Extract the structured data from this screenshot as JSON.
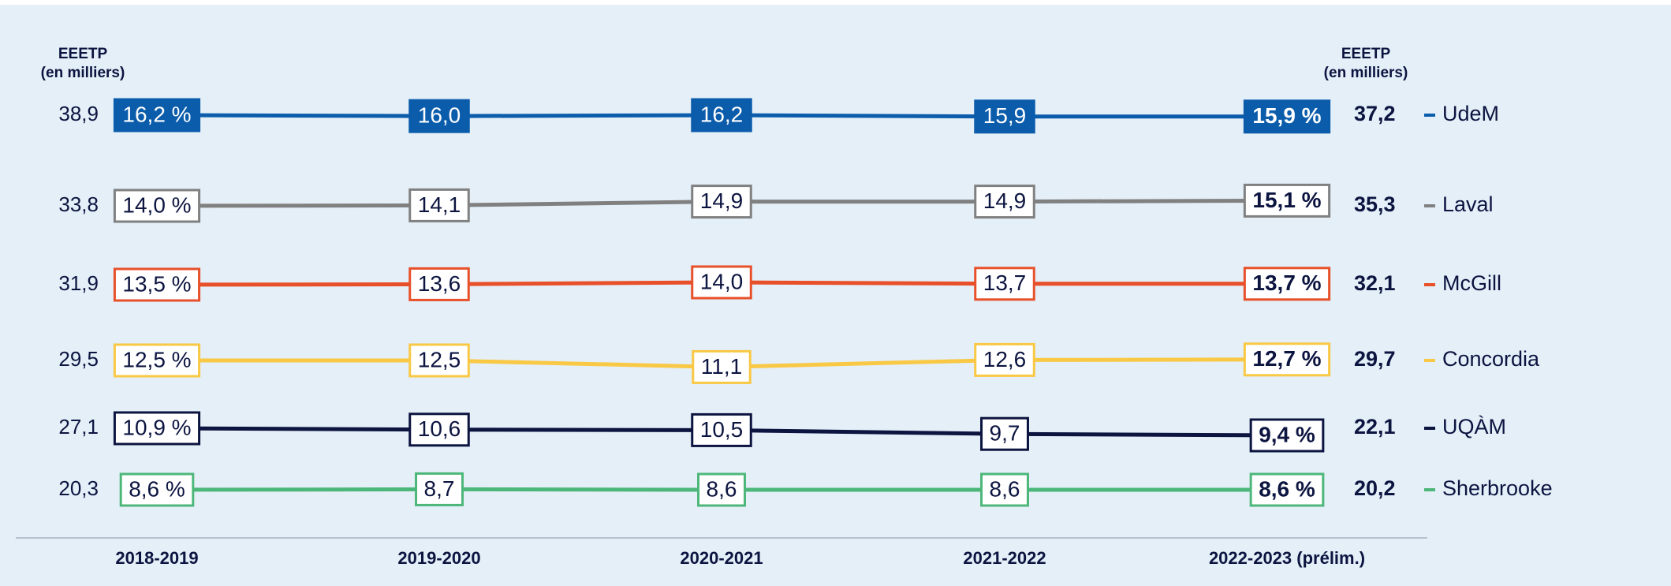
{
  "chart_data": {
    "type": "line",
    "eeetp_title": "EEETP",
    "eeetp_unit": "(en milliers)",
    "categories": [
      "2018-2019",
      "2019-2020",
      "2020-2021",
      "2021-2022",
      "2022-2023 (prélim.)"
    ],
    "series": [
      {
        "name": "UdeM",
        "color": "#0b5cab",
        "label_style": "filled",
        "values": [
          16.2,
          16.0,
          16.2,
          15.9,
          15.9
        ],
        "value_labels": [
          "16,2 %",
          "16,0",
          "16,2",
          "15,9",
          "15,9 %"
        ],
        "eeetp": [
          38.9,
          37.2
        ],
        "eeetp_labels": [
          "38,9",
          "37,2"
        ]
      },
      {
        "name": "Laval",
        "color": "#808080",
        "label_style": "outlined",
        "values": [
          14.0,
          14.1,
          14.9,
          14.9,
          15.1
        ],
        "value_labels": [
          "14,0 %",
          "14,1",
          "14,9",
          "14,9",
          "15,1 %"
        ],
        "eeetp": [
          33.8,
          35.3
        ],
        "eeetp_labels": [
          "33,8",
          "35,3"
        ]
      },
      {
        "name": "McGill",
        "color": "#e8502a",
        "label_style": "outlined",
        "values": [
          13.5,
          13.6,
          14.0,
          13.7,
          13.7
        ],
        "value_labels": [
          "13,5 %",
          "13,6",
          "14,0",
          "13,7",
          "13,7 %"
        ],
        "eeetp": [
          31.9,
          32.1
        ],
        "eeetp_labels": [
          "31,9",
          "32,1"
        ]
      },
      {
        "name": "Concordia",
        "color": "#f9c844",
        "label_style": "outlined",
        "values": [
          12.5,
          12.5,
          11.1,
          12.6,
          12.7
        ],
        "value_labels": [
          "12,5 %",
          "12,5",
          "11,1",
          "12,6",
          "12,7 %"
        ],
        "eeetp": [
          29.5,
          29.7
        ],
        "eeetp_labels": [
          "29,5",
          "29,7"
        ]
      },
      {
        "name": "UQÀM",
        "color": "#0c1440",
        "label_style": "outlined",
        "values": [
          10.9,
          10.6,
          10.5,
          9.7,
          9.4
        ],
        "value_labels": [
          "10,9 %",
          "10,6",
          "10,5",
          "9,7",
          "9,4 %"
        ],
        "eeetp": [
          27.1,
          22.1
        ],
        "eeetp_labels": [
          "27,1",
          "22,1"
        ]
      },
      {
        "name": "Sherbrooke",
        "color": "#4db77a",
        "label_style": "outlined",
        "values": [
          8.6,
          8.7,
          8.6,
          8.6,
          8.6
        ],
        "value_labels": [
          "8,6 %",
          "8,7",
          "8,6",
          "8,6",
          "8,6 %"
        ],
        "eeetp": [
          20.3,
          20.2
        ],
        "eeetp_labels": [
          "20,3",
          "20,2"
        ]
      }
    ]
  }
}
